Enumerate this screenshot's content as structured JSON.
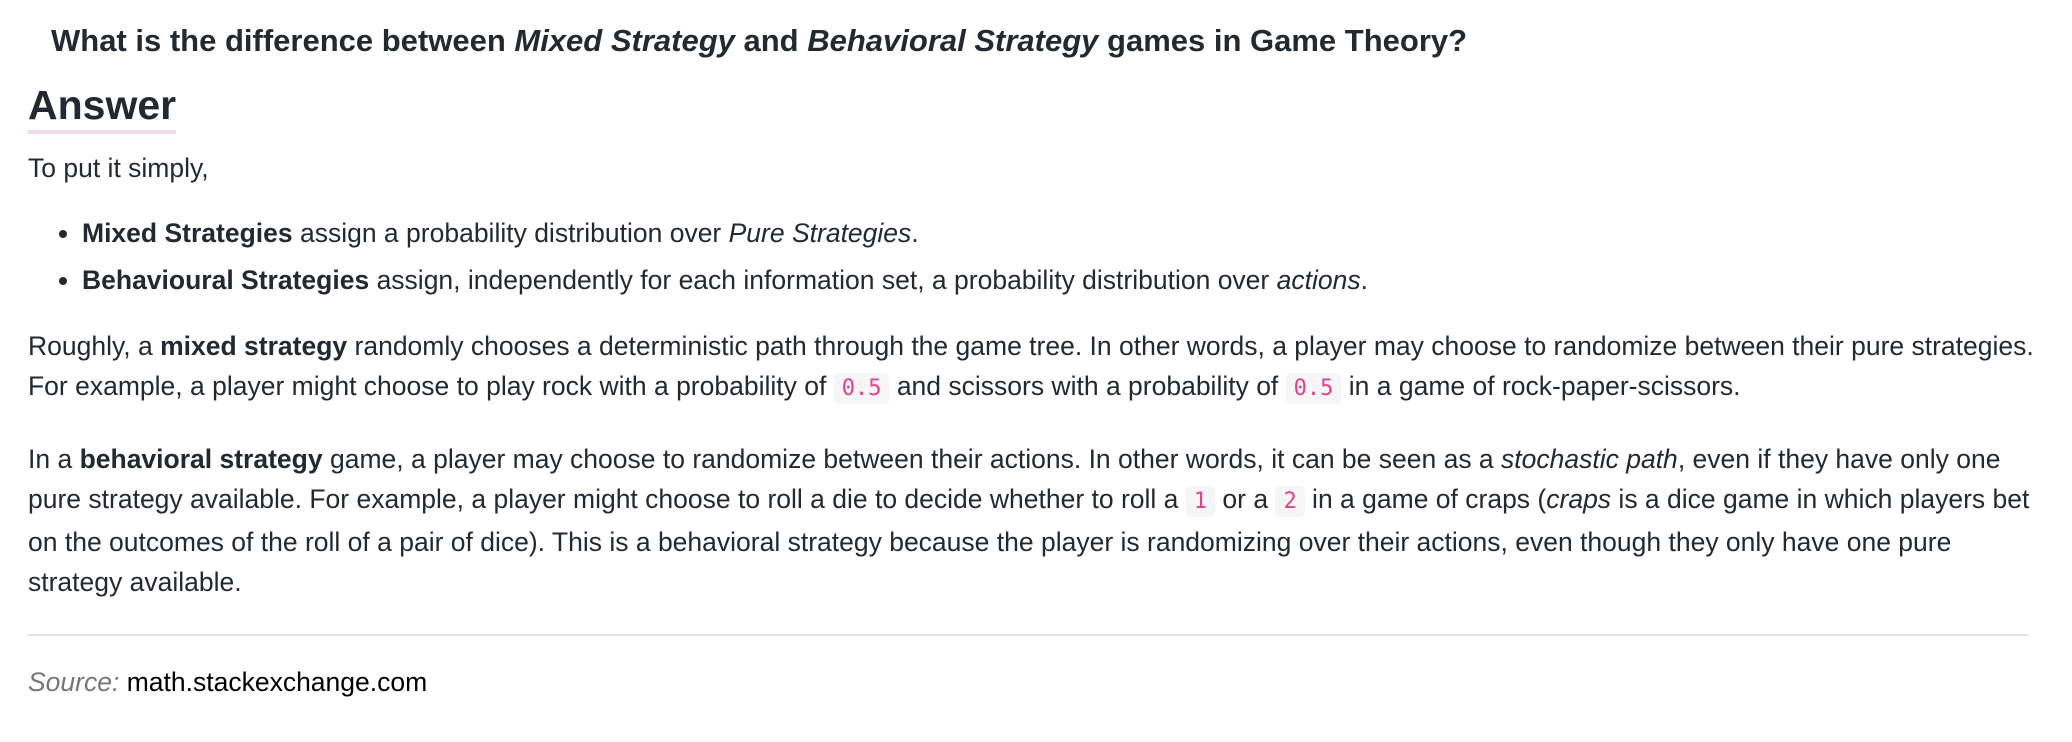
{
  "question": {
    "prefix": "What is the difference between ",
    "term1": "Mixed Strategy",
    "middle": " and ",
    "term2": "Behavioral Strategy",
    "suffix": " games in Game Theory?"
  },
  "answer_heading": "Answer",
  "intro": "To put it simply,",
  "bullets": [
    {
      "bold": "Mixed Strategies",
      "text": " assign a probability distribution over ",
      "italic": "Pure Strategies",
      "end": "."
    },
    {
      "bold": "Behavioural Strategies",
      "text": " assign, independently for each information set, a probability distribution over ",
      "italic": "actions",
      "end": "."
    }
  ],
  "para_mixed": {
    "t1": "Roughly, a ",
    "b1": "mixed strategy",
    "t2": " randomly chooses a deterministic path through the game tree. In other words, a player may choose to randomize between their pure strategies. For example, a player might choose to play rock with a probability of ",
    "c1": "0.5",
    "t3": " and scissors with a probability of ",
    "c2": "0.5",
    "t4": " in a game of rock-paper-scissors."
  },
  "para_behavioral": {
    "t1": "In a ",
    "b1": "behavioral strategy",
    "t2": " game, a player may choose to randomize between their actions. In other words, it can be seen as a ",
    "i1": "stochastic path",
    "t3": ", even if they have only one pure strategy available. For example, a player might choose to roll a die to decide whether to roll a ",
    "c1": "1",
    "t4": " or a ",
    "c2": "2",
    "t5": " in a game of craps (",
    "i2": "craps",
    "t6": " is a dice game in which players bet on the outcomes of the roll of a pair of dice). This is a behavioral strategy because the player is randomizing over their actions, even though they only have one pure strategy available."
  },
  "source": {
    "label": "Source:",
    "link_text": "math.stackexchange.com"
  },
  "colors": {
    "text": "#24292f",
    "code_text": "#e83e8c",
    "code_bg": "#f6f6f6",
    "heading_underline": "#f0dbe6",
    "divider": "#e3e3e3",
    "source_label": "#777777"
  }
}
